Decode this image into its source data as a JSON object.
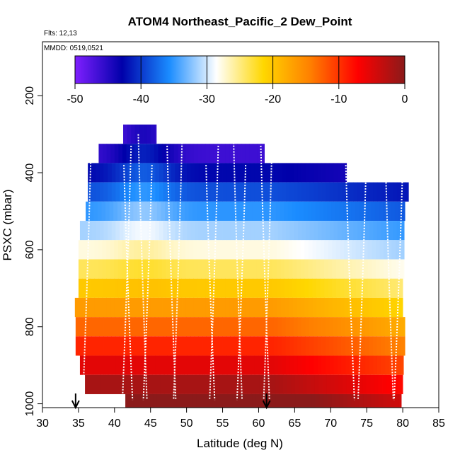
{
  "chart_data": {
    "type": "heatmap",
    "title": "ATOM4 Northeast_Pacific_2 Dew_Point",
    "flights_label": "Flts: 12,13",
    "date_label": "MMDD: 0519,0521",
    "xlabel": "Latitude (deg N)",
    "ylabel": "PSXC (mbar)",
    "xlim": [
      30,
      85
    ],
    "ylim": [
      1010,
      60
    ],
    "y_reversed": true,
    "x_ticks": [
      "30",
      "35",
      "40",
      "45",
      "50",
      "55",
      "60",
      "65",
      "70",
      "75",
      "80",
      "85"
    ],
    "y_ticks": [
      "200",
      "400",
      "600",
      "800",
      "1000"
    ],
    "grid": false,
    "colorbar": {
      "min": -50,
      "max": 0,
      "ticks": [
        "-50",
        "-40",
        "-30",
        "-20",
        "-10",
        "0"
      ],
      "colors": [
        "#7f1fff",
        "#0000aa",
        "#1a8cff",
        "#ffffff",
        "#ffd700",
        "#ff7f00",
        "#ff0000",
        "#8b1a1a"
      ]
    },
    "pressure_levels": [
      300,
      350,
      400,
      450,
      500,
      550,
      600,
      650,
      700,
      750,
      800,
      850,
      900,
      950,
      1000
    ],
    "profile_latitudes": [
      36.8,
      41.3,
      42.3,
      43.3,
      45.2,
      47.3,
      49.4,
      52.7,
      54.4,
      56.5,
      58.2,
      60.3,
      61.9,
      72.1,
      75.0,
      77.5,
      80.0
    ],
    "takeoff_landing_arrows_lat": [
      34.6,
      61.1
    ]
  }
}
